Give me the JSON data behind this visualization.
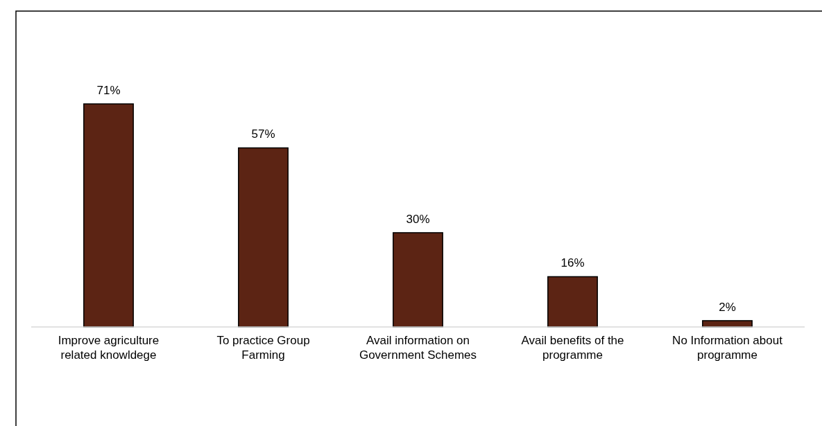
{
  "chart_data": {
    "type": "bar",
    "categories": [
      "Improve agriculture related knowldege",
      "To practice Group Farming",
      "Avail information on Government Schemes",
      "Avail benefits of the programme",
      "No Information about programme"
    ],
    "values": [
      71,
      57,
      30,
      16,
      2
    ],
    "color": "#5c2414",
    "value_labels": [
      "71%",
      "57%",
      "30%",
      "16%",
      "2%"
    ]
  }
}
